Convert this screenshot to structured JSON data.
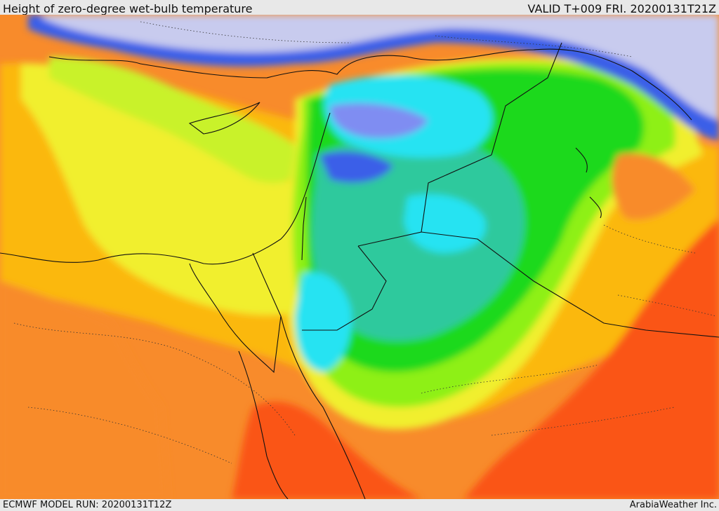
{
  "header": {
    "title": "Height of zero-degree wet-bulb temperature",
    "valid": "VALID T+009 FRI. 20200131T21Z"
  },
  "footer": {
    "model_run": "ECMWF MODEL RUN: 20200131T12Z",
    "credit": "ArabiaWeather Inc."
  },
  "colors": {
    "sea_low": "#c8cbee",
    "blue": "#3a5fe8",
    "light_blue": "#7f8df2",
    "cyan": "#25e3f2",
    "teal": "#2ec99d",
    "green": "#1ed91e",
    "light_green": "#8ef012",
    "yellow_green": "#c9f22b",
    "yellow": "#f1ef2d",
    "orange_yellow": "#fbb80e",
    "orange": "#f88b2b",
    "red_orange": "#fa5418"
  }
}
